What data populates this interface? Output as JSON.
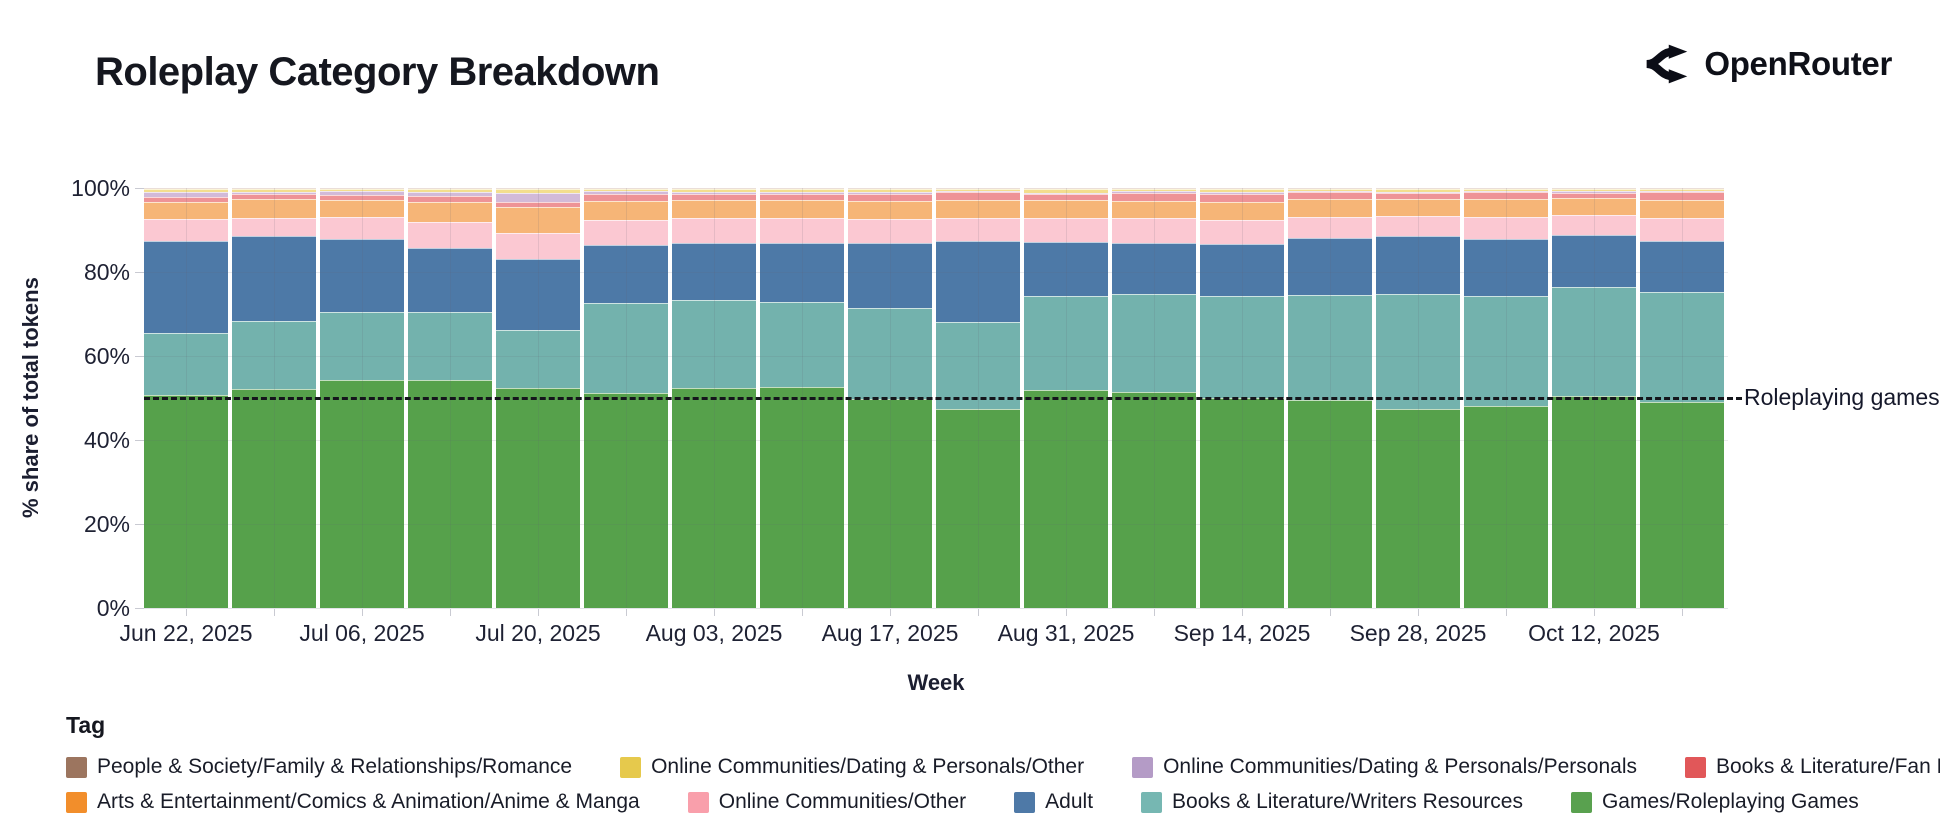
{
  "header": {
    "title": "Roleplay Category Breakdown",
    "brand": "OpenRouter"
  },
  "chart_data": {
    "type": "bar",
    "stacked": true,
    "title": "Roleplay Category Breakdown",
    "xlabel": "Week",
    "ylabel": "% share of total tokens",
    "ylim": [
      0,
      100
    ],
    "ytick_labels": [
      "0%",
      "20%",
      "40%",
      "60%",
      "80%",
      "100%"
    ],
    "ytick_values": [
      0,
      20,
      40,
      60,
      80,
      100
    ],
    "gridlines_pct": [
      20,
      40,
      60,
      80
    ],
    "categories": [
      "Jun 22",
      "Jun 29",
      "Jul 06",
      "Jul 13",
      "Jul 20",
      "Jul 27",
      "Aug 03",
      "Aug 10",
      "Aug 17",
      "Aug 24",
      "Aug 31",
      "Sep 07",
      "Sep 14",
      "Sep 21",
      "Sep 28",
      "Oct 05",
      "Oct 12",
      "Oct 19"
    ],
    "x_tick_labels": [
      "Jun 22, 2025",
      "",
      "Jul 06, 2025",
      "",
      "Jul 20, 2025",
      "",
      "Aug 03, 2025",
      "",
      "Aug 17, 2025",
      "",
      "Aug 31, 2025",
      "",
      "Sep 14, 2025",
      "",
      "Sep 28, 2025",
      "",
      "Oct 12, 2025",
      ""
    ],
    "series": [
      {
        "name": "Games/Roleplaying Games",
        "band": "#56a14b",
        "swatch": "#59a14f",
        "values": [
          50.8,
          52.2,
          54.4,
          54.3,
          52.4,
          51.3,
          52.3,
          52.6,
          49.7,
          47.3,
          51.9,
          51.4,
          50.0,
          49.5,
          47.3,
          48.0,
          50.6,
          49.0
        ]
      },
      {
        "name": "Books & Literature/Writers Resources",
        "band": "#73b2ad",
        "swatch": "#76b7b2",
        "values": [
          14.7,
          16.1,
          16.1,
          16.2,
          13.8,
          21.4,
          21.0,
          20.3,
          21.8,
          20.8,
          22.3,
          23.3,
          24.3,
          25.0,
          27.4,
          26.2,
          25.9,
          26.3
        ]
      },
      {
        "name": "Adult",
        "band": "#4d79a7",
        "swatch": "#4e79a7",
        "values": [
          21.9,
          20.2,
          17.3,
          15.3,
          16.9,
          13.7,
          13.6,
          14.1,
          15.4,
          19.3,
          13.0,
          12.2,
          12.3,
          13.7,
          13.8,
          13.8,
          12.3,
          12.1
        ]
      },
      {
        "name": "Online Communities/Other",
        "band": "#fbc8d2",
        "swatch": "#f99fab",
        "values": [
          5.2,
          4.5,
          5.4,
          6.0,
          6.2,
          6.0,
          5.9,
          6.0,
          5.7,
          5.6,
          5.8,
          5.9,
          5.8,
          5.0,
          4.9,
          5.2,
          4.8,
          5.6
        ]
      },
      {
        "name": "Arts & Entertainment/Comics & Animation/Anime & Manga",
        "band": "#f6b577",
        "swatch": "#f28e2b",
        "values": [
          4.1,
          4.4,
          4.0,
          4.9,
          6.1,
          4.6,
          4.4,
          4.2,
          4.4,
          4.2,
          4.2,
          4.2,
          4.3,
          4.2,
          4.0,
          4.2,
          4.0,
          4.2
        ]
      },
      {
        "name": "Books & Literature/Fan Fiction",
        "band": "#ee9396",
        "swatch": "#e15759",
        "values": [
          1.1,
          1.2,
          1.1,
          1.3,
          1.3,
          1.6,
          1.3,
          1.4,
          1.5,
          1.8,
          1.3,
          1.8,
          1.9,
          1.6,
          1.5,
          1.6,
          1.3,
          1.8
        ]
      },
      {
        "name": "Online Communities/Dating & Personals/Personals",
        "band": "#d2bad8",
        "swatch": "#b49bc6",
        "values": [
          1.2,
          0.6,
          1.0,
          1.1,
          2.2,
          0.7,
          0.5,
          0.6,
          0.7,
          0.4,
          0.4,
          0.5,
          0.6,
          0.4,
          0.3,
          0.4,
          0.4,
          0.4
        ]
      },
      {
        "name": "Online Communities/Dating & Personals/Other",
        "band": "#f3de8e",
        "swatch": "#e6c94c",
        "values": [
          0.8,
          0.6,
          0.4,
          0.6,
          0.9,
          0.5,
          0.8,
          0.6,
          0.6,
          0.4,
          0.9,
          0.5,
          0.6,
          0.4,
          0.6,
          0.4,
          0.5,
          0.4
        ]
      },
      {
        "name": "People & Society/Family & Relationships/Romance",
        "band": "#c4a190",
        "swatch": "#9c755f",
        "values": [
          0.2,
          0.2,
          0.3,
          0.3,
          0.2,
          0.2,
          0.2,
          0.2,
          0.2,
          0.2,
          0.2,
          0.2,
          0.2,
          0.2,
          0.2,
          0.2,
          0.2,
          0.2
        ]
      }
    ],
    "annotation": {
      "label": "Roleplaying games",
      "y": 50
    },
    "legend_position": "bottom"
  },
  "legend": {
    "title": "Tag",
    "rows": [
      [
        "People & Society/Family & Relationships/Romance",
        "Online Communities/Dating & Personals/Other",
        "Online Communities/Dating & Personals/Personals",
        "Books & Literature/Fan Fiction"
      ],
      [
        "Arts & Entertainment/Comics & Animation/Anime & Manga",
        "Online Communities/Other",
        "Adult",
        "Books & Literature/Writers Resources",
        "Games/Roleplaying Games"
      ]
    ]
  }
}
